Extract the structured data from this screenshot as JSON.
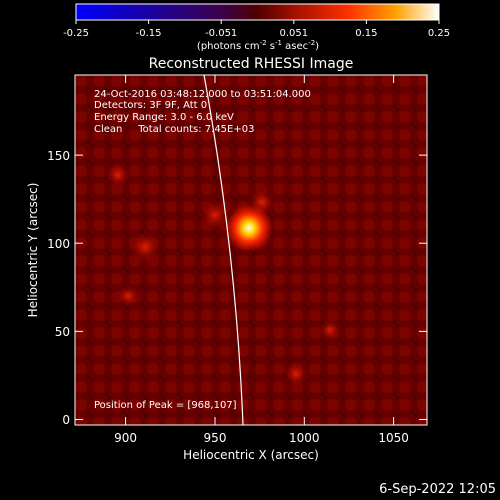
{
  "colorbar": {
    "ticks": [
      "-0.25",
      "-0.15",
      "-0.051",
      "0.051",
      "0.15",
      "0.25"
    ],
    "unit_prefix": "(photons cm",
    "unit_exp1": "-2",
    "unit_mid1": " s",
    "unit_exp2": "-1",
    "unit_mid2": " asec",
    "unit_exp3": "-2",
    "unit_suffix": ")"
  },
  "plot": {
    "title": "Reconstructed RHESSI Image",
    "xlabel": "Heliocentric X (arcsec)",
    "ylabel": "Heliocentric Y (arcsec)",
    "x_ticks": [
      {
        "label": "900",
        "value": 900
      },
      {
        "label": "950",
        "value": 950
      },
      {
        "label": "1000",
        "value": 1000
      },
      {
        "label": "1050",
        "value": 1050
      }
    ],
    "y_ticks": [
      {
        "label": "0",
        "value": 0
      },
      {
        "label": "50",
        "value": 50
      },
      {
        "label": "100",
        "value": 100
      },
      {
        "label": "150",
        "value": 150
      }
    ],
    "xlim": [
      868,
      1065
    ],
    "ylim": [
      -3,
      187
    ],
    "info_lines": [
      "24-Oct-2016 03:48:12.000 to 03:51:04.000",
      "Detectors: 3F 9F, Att 0",
      "Energy Range: 3.0 - 6.0 keV",
      "Clean     Total counts: 7.45E+03"
    ],
    "peak_text": "Position of Peak = [968,107]"
  },
  "footer": {
    "timestamp": "6-Sep-2022 12:05"
  }
}
